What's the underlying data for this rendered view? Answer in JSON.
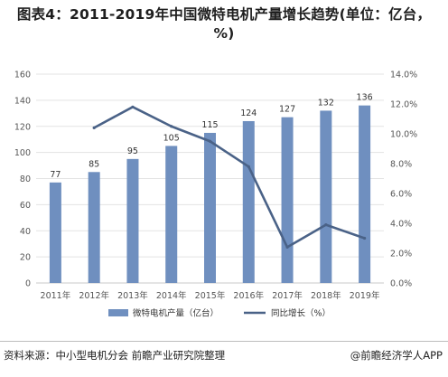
{
  "header": {
    "title": "图表4：2011-2019年中国微特电机产量增长趋势(单位：亿台，%)"
  },
  "footer": {
    "source": "资料来源：中小型电机分会 前瞻产业研究院整理",
    "brand": "@前瞻经济学人APP"
  },
  "colors": {
    "bar": "#6f8fbf",
    "line": "#4a6287",
    "axis_text": "#555555",
    "grid": "#e3e3e3"
  },
  "chart_data": {
    "type": "bar",
    "categories": [
      "2011年",
      "2012年",
      "2013年",
      "2014年",
      "2015年",
      "2016年",
      "2017年",
      "2018年",
      "2019年"
    ],
    "series": [
      {
        "name": "微特电机产量（亿台）",
        "type": "bar",
        "axis": "left",
        "values": [
          77,
          85,
          95,
          105,
          115,
          124,
          127,
          132,
          136
        ],
        "data_labels": [
          "77",
          "85",
          "95",
          "105",
          "115",
          "124",
          "127",
          "132",
          "136"
        ]
      },
      {
        "name": "同比增长（%）",
        "type": "line",
        "axis": "right",
        "values": [
          null,
          10.4,
          11.8,
          10.5,
          9.5,
          7.8,
          2.4,
          3.9,
          3.0
        ]
      }
    ],
    "y_left": {
      "min": 0,
      "max": 160,
      "ticks": [
        "0",
        "20",
        "40",
        "60",
        "80",
        "100",
        "120",
        "140",
        "160"
      ]
    },
    "y_right": {
      "min": 0,
      "max": 14,
      "ticks": [
        "0.0%",
        "2.0%",
        "4.0%",
        "6.0%",
        "8.0%",
        "10.0%",
        "12.0%",
        "14.0%"
      ]
    },
    "grid": true,
    "legend_position": "bottom"
  }
}
